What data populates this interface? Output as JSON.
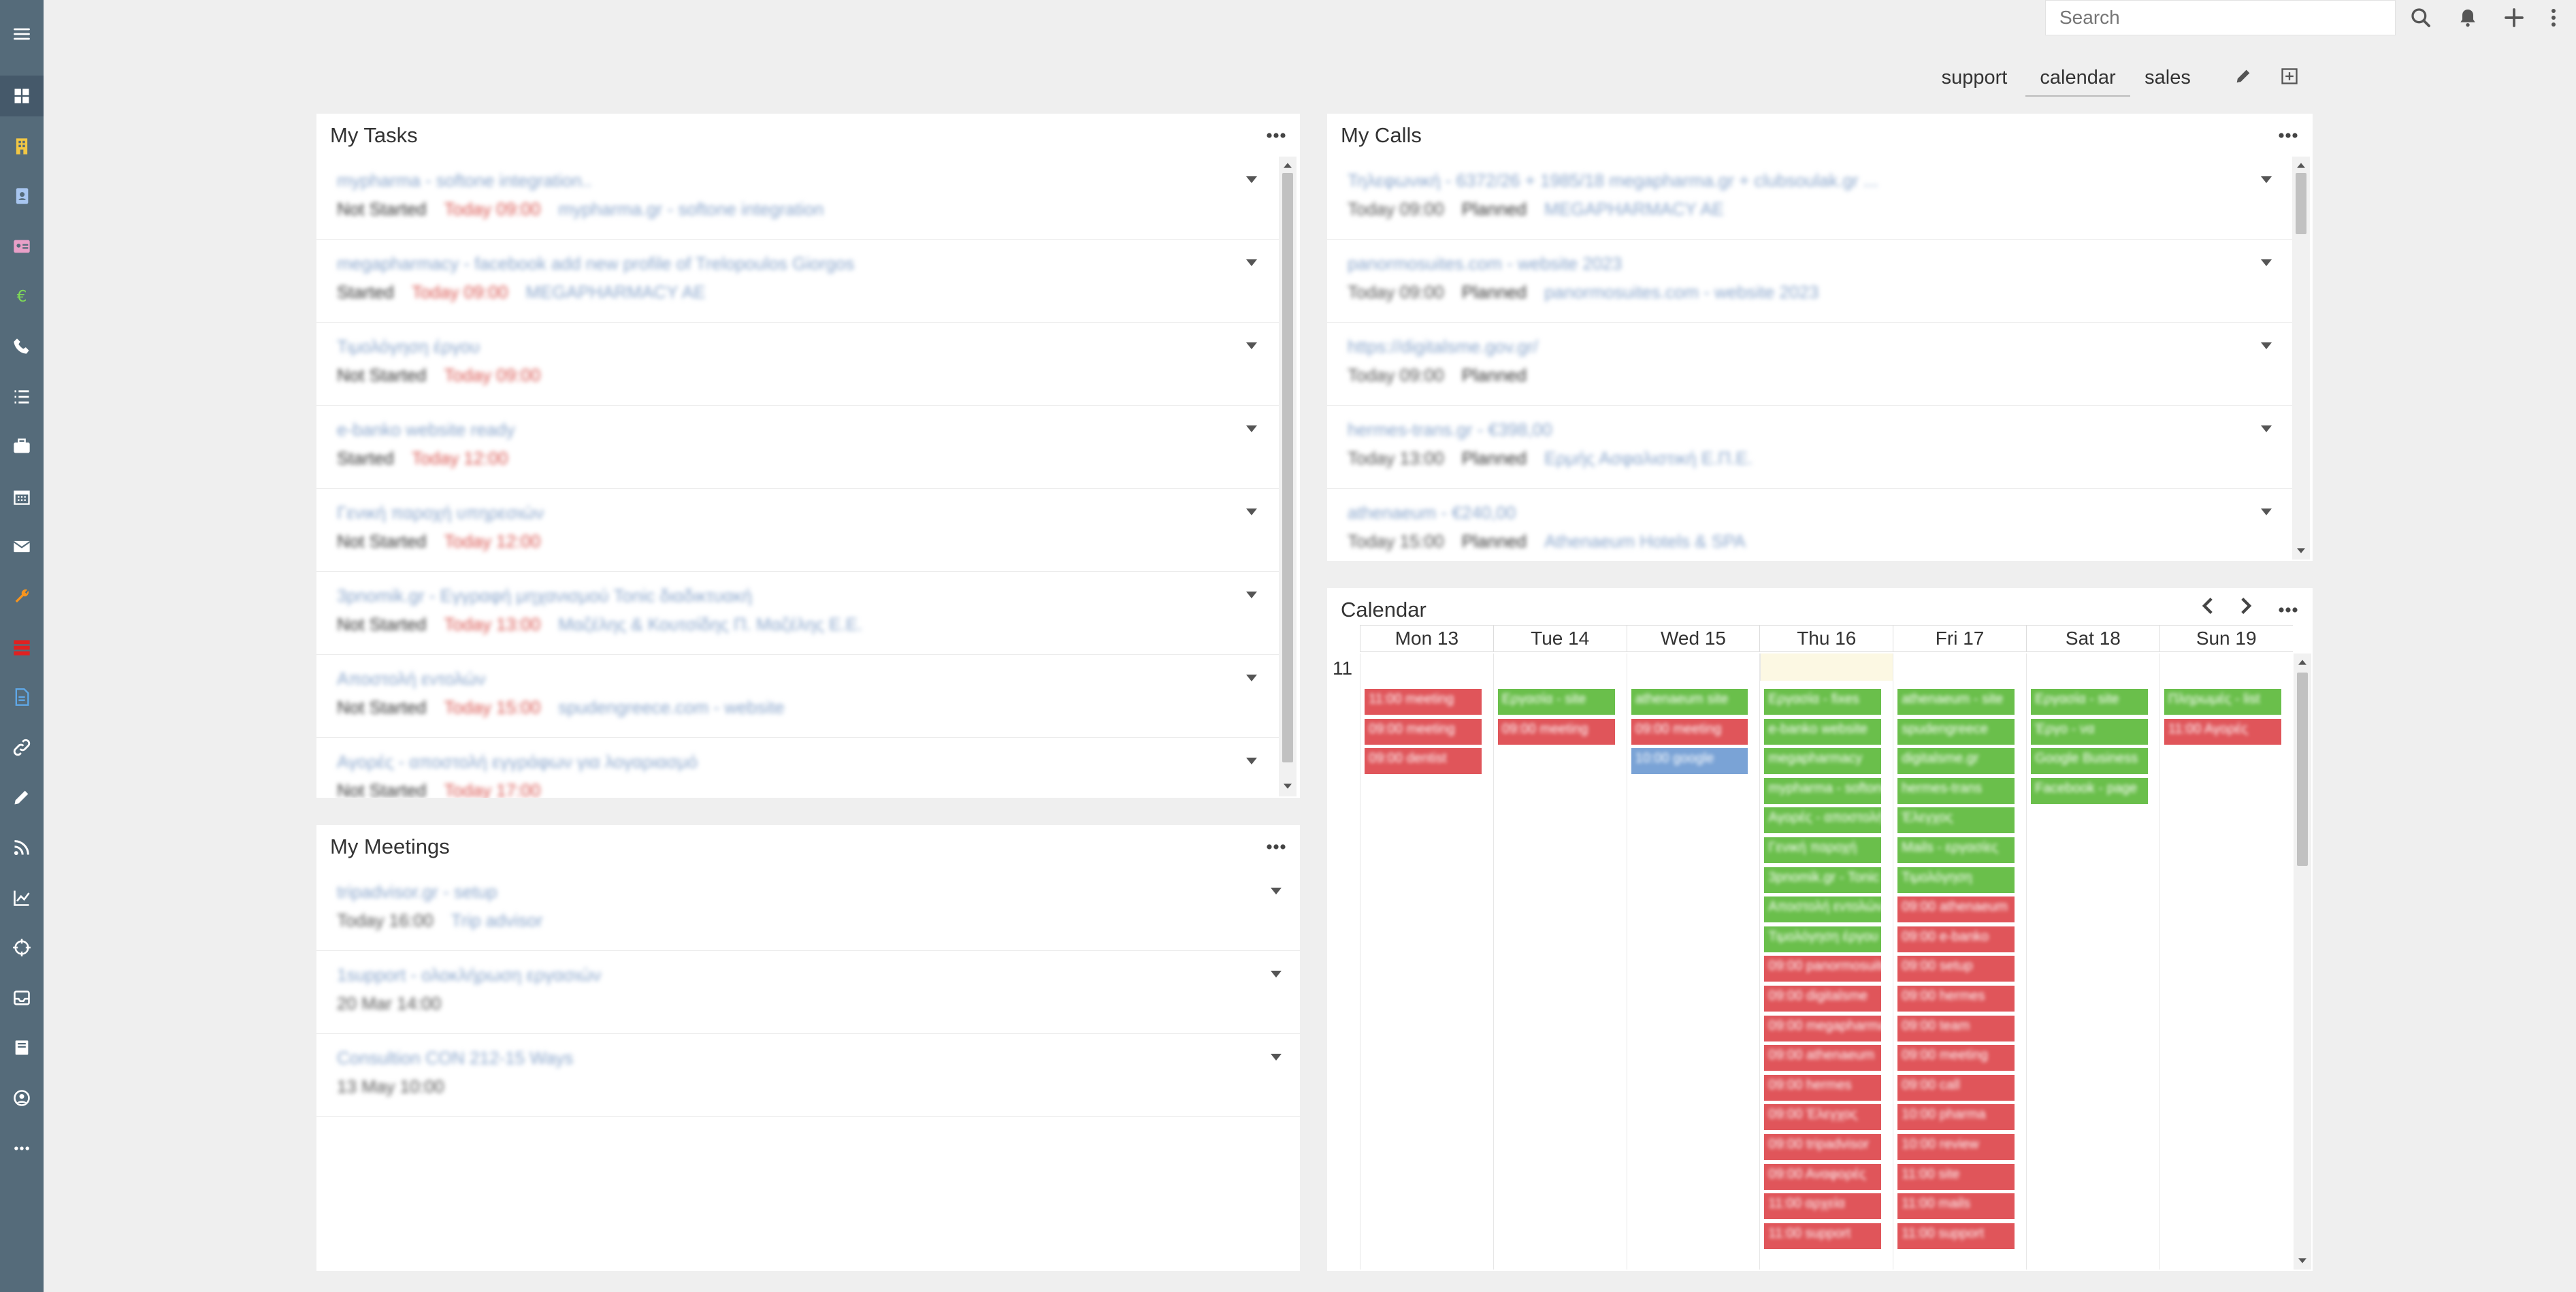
{
  "sidebar": {
    "items": [
      {
        "icon": "hamburger-menu-icon",
        "color": "#ffffff"
      },
      {
        "icon": "dashboard-icon",
        "color": "#ffffff",
        "active": true
      },
      {
        "icon": "building-icon",
        "color": "#f2c744"
      },
      {
        "icon": "contact-book-icon",
        "color": "#a8c6f0"
      },
      {
        "icon": "id-card-icon",
        "color": "#e9a0c8"
      },
      {
        "icon": "euro-icon",
        "color": "#7ed957"
      },
      {
        "icon": "phone-icon",
        "color": "#ffffff"
      },
      {
        "icon": "task-list-icon",
        "color": "#ffffff"
      },
      {
        "icon": "briefcase-icon",
        "color": "#ffffff"
      },
      {
        "icon": "calendar-icon",
        "color": "#ffffff"
      },
      {
        "icon": "envelope-icon",
        "color": "#ffffff"
      },
      {
        "icon": "wrench-icon",
        "color": "#f7941d"
      },
      {
        "icon": "red-stack-icon",
        "color": "#e02020"
      },
      {
        "icon": "document-icon",
        "color": "#5fa8e8"
      },
      {
        "icon": "link-icon",
        "color": "#ffffff"
      },
      {
        "icon": "pencil-icon",
        "color": "#ffffff"
      },
      {
        "icon": "rss-icon",
        "color": "#ffffff"
      },
      {
        "icon": "chart-line-icon",
        "color": "#ffffff"
      },
      {
        "icon": "crosshair-icon",
        "color": "#ffffff"
      },
      {
        "icon": "inbox-icon",
        "color": "#ffffff"
      },
      {
        "icon": "book-icon",
        "color": "#ffffff"
      },
      {
        "icon": "user-circle-icon",
        "color": "#ffffff"
      },
      {
        "icon": "more-dots-icon",
        "color": "#ffffff"
      }
    ]
  },
  "topbar": {
    "search_placeholder": "Search",
    "icons": [
      "search-icon",
      "bell-icon",
      "plus-icon",
      "vertical-dots-icon"
    ]
  },
  "dashboard_tabs": [
    {
      "label": "support",
      "active": false
    },
    {
      "label": "calendar",
      "active": true
    },
    {
      "label": "sales",
      "active": false
    }
  ],
  "panels": {
    "tasks": {
      "title": "My Tasks",
      "rows": [
        {
          "name": "mypharma - softone integration..",
          "status": "Not Started",
          "date": "Today 09:00",
          "parent": "mypharma.gr - softone integration"
        },
        {
          "name": "megapharmacy - facebook add new profile of Trelopoulos Giorgos",
          "status": "Started",
          "date": "Today 09:00",
          "parent": "MEGAPHARMACY AE"
        },
        {
          "name": "Τιμολόγηση έργου",
          "status": "Not Started",
          "date": "Today 09:00",
          "parent": ""
        },
        {
          "name": "e-banko website ready",
          "status": "Started",
          "date": "Today 12:00",
          "parent": ""
        },
        {
          "name": "Γενική παροχή υπηρεσιών",
          "status": "Not Started",
          "date": "Today 12:00",
          "parent": ""
        },
        {
          "name": "3pnomik.gr - Εγγραφή μηχανισμού Tonic διαδικτυακή",
          "status": "Not Started",
          "date": "Today 13:00",
          "parent": "Μαζέλης & Κουτσίδης Π. Μαζέλης Ε.Ε."
        },
        {
          "name": "Αποστολή εντολών",
          "status": "Not Started",
          "date": "Today 15:00",
          "parent": "spudengreece.com - website"
        },
        {
          "name": "Αγορές - αποστολή εγγράφων για λογαριασμό",
          "status": "Not Started",
          "date": "Today 17:00",
          "parent": ""
        }
      ]
    },
    "calls": {
      "title": "My Calls",
      "rows": [
        {
          "name": "Τηλεφωνική - 6372/26 + 1985/18 megapharma.gr + clubsoulak.gr ...",
          "date": "Today 09:00",
          "status": "Planned",
          "parent": "MEGAPHARMACY AE"
        },
        {
          "name": "panormosuites.com - website 2023",
          "date": "Today 09:00",
          "status": "Planned",
          "parent": "panormosuites.com - website 2023"
        },
        {
          "name": "https://digitalsme.gov.gr/",
          "date": "Today 09:00",
          "status": "Planned",
          "parent": ""
        },
        {
          "name": "hermes-trans.gr - €398,00",
          "date": "Today 13:00",
          "status": "Planned",
          "parent": "Ερμής Ασφαλιστική Ε.Π.Ε."
        },
        {
          "name": "athenaeum - €240,00",
          "date": "Today 15:00",
          "status": "Planned",
          "parent": "Athenaeum Hotels & SPA"
        }
      ]
    },
    "meetings": {
      "title": "My Meetings",
      "rows": [
        {
          "name": "tripadvisor.gr - setup",
          "date": "Today 16:00",
          "parent": "Trip advisor"
        },
        {
          "name": "1support - ολοκλήρωση εργασιών",
          "date": "20 Mar 14:00",
          "parent": ""
        },
        {
          "name": "Consultion CON 212-15 Ways",
          "date": "13 May 10:00",
          "parent": ""
        }
      ]
    },
    "calendar": {
      "title": "Calendar",
      "hour_label": "11",
      "days": [
        {
          "label": "Mon 13",
          "today": false
        },
        {
          "label": "Tue 14",
          "today": false
        },
        {
          "label": "Wed 15",
          "today": false
        },
        {
          "label": "Thu 16",
          "today": true
        },
        {
          "label": "Fri 17",
          "today": false
        },
        {
          "label": "Sat 18",
          "today": false
        },
        {
          "label": "Sun 19",
          "today": false
        }
      ],
      "events": [
        {
          "day": 0,
          "slot": 0,
          "color": "r",
          "text": "11:00 meeting"
        },
        {
          "day": 0,
          "slot": 1,
          "color": "r",
          "text": "09:00 meeting"
        },
        {
          "day": 0,
          "slot": 2,
          "color": "r",
          "text": "09:00 dentist"
        },
        {
          "day": 1,
          "slot": 0,
          "color": "g",
          "text": "Εργασία - site"
        },
        {
          "day": 1,
          "slot": 1,
          "color": "r",
          "text": "09:00 meeting"
        },
        {
          "day": 2,
          "slot": 0,
          "color": "g",
          "text": "athenaeum site"
        },
        {
          "day": 2,
          "slot": 1,
          "color": "r",
          "text": "09:00 meeting"
        },
        {
          "day": 2,
          "slot": 2,
          "color": "b",
          "text": "10:00 google"
        },
        {
          "day": 3,
          "slot": 0,
          "color": "g",
          "text": "Εργασία - fixes"
        },
        {
          "day": 3,
          "slot": 1,
          "color": "g",
          "text": "e-banko website"
        },
        {
          "day": 3,
          "slot": 2,
          "color": "g",
          "text": "megapharmacy"
        },
        {
          "day": 3,
          "slot": 3,
          "color": "g",
          "text": "mypharma - softone"
        },
        {
          "day": 3,
          "slot": 4,
          "color": "g",
          "text": "Αγορές - αποστολή"
        },
        {
          "day": 3,
          "slot": 5,
          "color": "g",
          "text": "Γενική παροχή"
        },
        {
          "day": 3,
          "slot": 6,
          "color": "g",
          "text": "3pnomik.gr - Tonic"
        },
        {
          "day": 3,
          "slot": 7,
          "color": "g",
          "text": "Αποστολή εντολών"
        },
        {
          "day": 3,
          "slot": 8,
          "color": "g",
          "text": "Τιμολόγηση έργου"
        },
        {
          "day": 3,
          "slot": 9,
          "color": "r",
          "text": "09:00 panormosuites"
        },
        {
          "day": 3,
          "slot": 10,
          "color": "r",
          "text": "09:00 digitalsme"
        },
        {
          "day": 3,
          "slot": 11,
          "color": "r",
          "text": "09:00 megapharma"
        },
        {
          "day": 3,
          "slot": 12,
          "color": "r",
          "text": "09:00 athenaeum"
        },
        {
          "day": 3,
          "slot": 13,
          "color": "r",
          "text": "09:00 hermes"
        },
        {
          "day": 3,
          "slot": 14,
          "color": "r",
          "text": "09:00 Έλεγχος"
        },
        {
          "day": 3,
          "slot": 15,
          "color": "r",
          "text": "09:00 tripadvisor"
        },
        {
          "day": 3,
          "slot": 16,
          "color": "r",
          "text": "09:00 Αναφορές"
        },
        {
          "day": 3,
          "slot": 17,
          "color": "r",
          "text": "11:00 αρχεία"
        },
        {
          "day": 3,
          "slot": 18,
          "color": "r",
          "text": "11:00 support"
        },
        {
          "day": 4,
          "slot": 0,
          "color": "g",
          "text": "athenaeum - site"
        },
        {
          "day": 4,
          "slot": 1,
          "color": "g",
          "text": "spudengreece"
        },
        {
          "day": 4,
          "slot": 2,
          "color": "g",
          "text": "digitalsme.gr"
        },
        {
          "day": 4,
          "slot": 3,
          "color": "g",
          "text": "hermes-trans"
        },
        {
          "day": 4,
          "slot": 4,
          "color": "g",
          "text": "Έλεγχος"
        },
        {
          "day": 4,
          "slot": 5,
          "color": "g",
          "text": "Mails - εργασίες"
        },
        {
          "day": 4,
          "slot": 6,
          "color": "g",
          "text": "Τιμολόγηση"
        },
        {
          "day": 4,
          "slot": 7,
          "color": "r",
          "text": "09:00 athenaeum"
        },
        {
          "day": 4,
          "slot": 8,
          "color": "r",
          "text": "09:00 e-banko"
        },
        {
          "day": 4,
          "slot": 9,
          "color": "r",
          "text": "09:00 setup"
        },
        {
          "day": 4,
          "slot": 10,
          "color": "r",
          "text": "09:00 hermes"
        },
        {
          "day": 4,
          "slot": 11,
          "color": "r",
          "text": "09:00 team"
        },
        {
          "day": 4,
          "slot": 12,
          "color": "r",
          "text": "09:00 meeting"
        },
        {
          "day": 4,
          "slot": 13,
          "color": "r",
          "text": "09:00 call"
        },
        {
          "day": 4,
          "slot": 14,
          "color": "r",
          "text": "10:00 pharma"
        },
        {
          "day": 4,
          "slot": 15,
          "color": "r",
          "text": "10:00 review"
        },
        {
          "day": 4,
          "slot": 16,
          "color": "r",
          "text": "11:00 site"
        },
        {
          "day": 4,
          "slot": 17,
          "color": "r",
          "text": "11:00 mails"
        },
        {
          "day": 4,
          "slot": 18,
          "color": "r",
          "text": "11:00 support"
        },
        {
          "day": 5,
          "slot": 0,
          "color": "g",
          "text": "Εργασία - site"
        },
        {
          "day": 5,
          "slot": 1,
          "color": "g",
          "text": "Έργο - να"
        },
        {
          "day": 5,
          "slot": 2,
          "color": "g",
          "text": "Google Business"
        },
        {
          "day": 5,
          "slot": 3,
          "color": "g",
          "text": "Facebook - page"
        },
        {
          "day": 6,
          "slot": 0,
          "color": "g",
          "text": "Πληρωμές - list"
        },
        {
          "day": 6,
          "slot": 1,
          "color": "r",
          "text": "11:00 Αγορές"
        }
      ]
    }
  }
}
